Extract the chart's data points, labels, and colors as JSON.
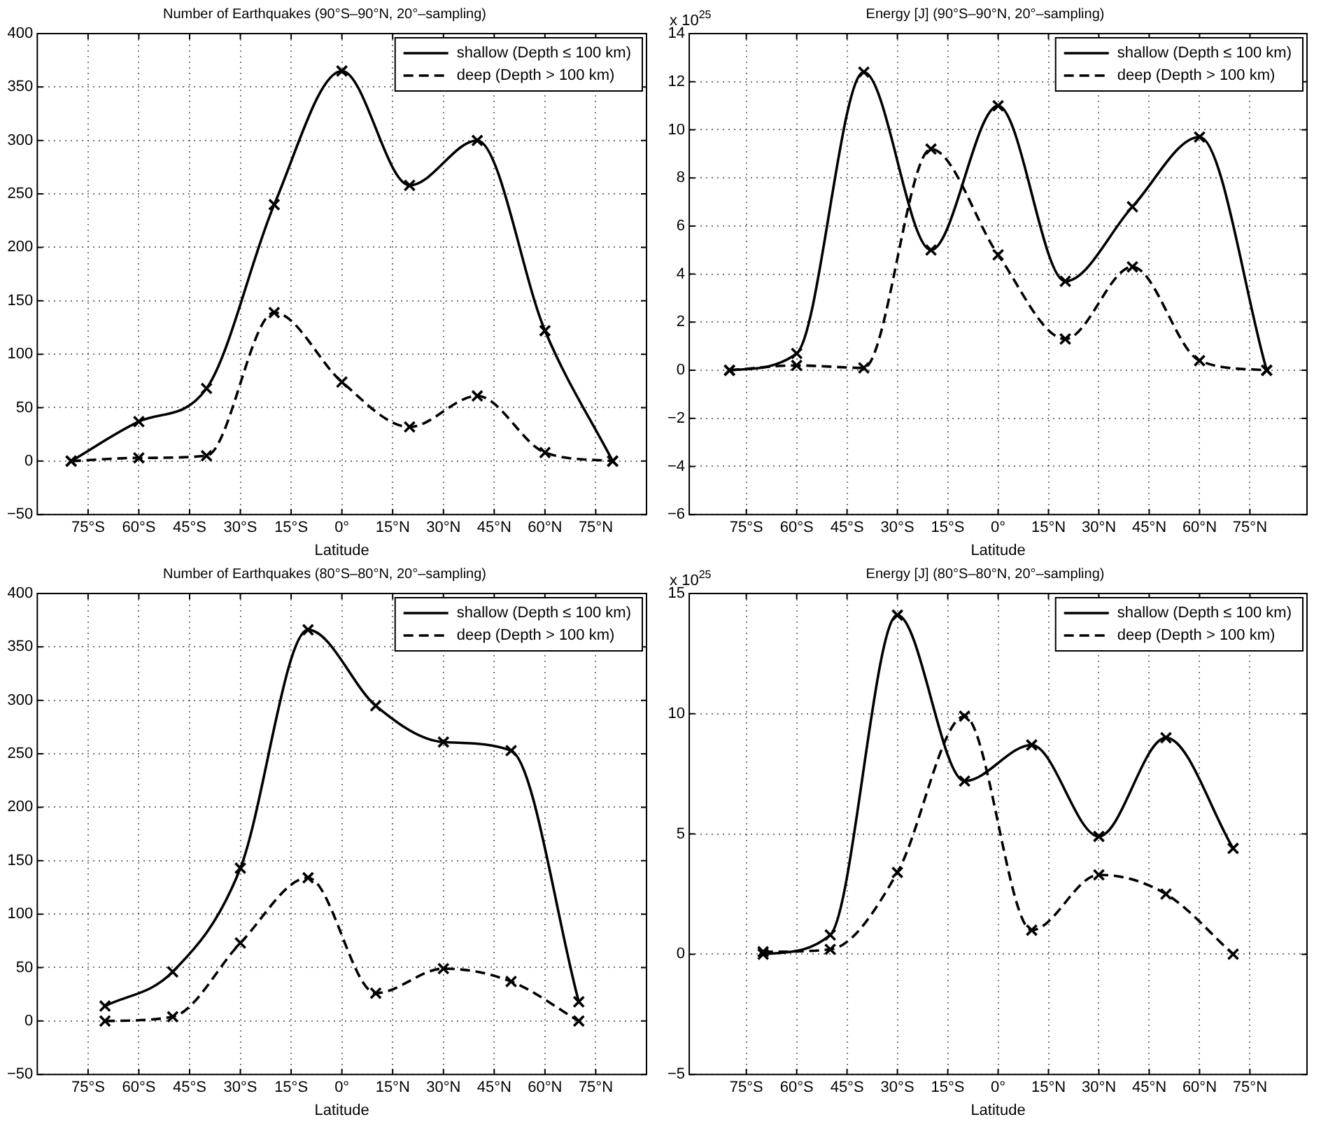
{
  "chart_data": [
    {
      "type": "line",
      "title": "Number of Earthquakes (90°S–90°N, 20°–sampling)",
      "xlabel": "Latitude",
      "x": [
        -80,
        -60,
        -40,
        -20,
        0,
        20,
        40,
        60,
        80
      ],
      "xlim": [
        -90,
        90
      ],
      "xticks": [
        {
          "value": -75,
          "label": "75°S"
        },
        {
          "value": -60,
          "label": "60°S"
        },
        {
          "value": -45,
          "label": "45°S"
        },
        {
          "value": -30,
          "label": "30°S"
        },
        {
          "value": -15,
          "label": "15°S"
        },
        {
          "value": 0,
          "label": "0°"
        },
        {
          "value": 15,
          "label": "15°N"
        },
        {
          "value": 30,
          "label": "30°N"
        },
        {
          "value": 45,
          "label": "45°N"
        },
        {
          "value": 60,
          "label": "60°N"
        },
        {
          "value": 75,
          "label": "75°N"
        }
      ],
      "ylim": [
        -50,
        400
      ],
      "yticks": [
        -50,
        0,
        50,
        100,
        150,
        200,
        250,
        300,
        350,
        400
      ],
      "grid": true,
      "legend": "top right",
      "marker": "cross",
      "series": [
        {
          "name": "shallow (Depth ≤ 100 km)",
          "color": "#000000",
          "line_style": "solid",
          "values": [
            0,
            37,
            68,
            240,
            365,
            258,
            300,
            122,
            0
          ]
        },
        {
          "name": "deep (Depth > 100 km)",
          "color": "#000000",
          "line_style": "dashed",
          "values": [
            0,
            3,
            5,
            139,
            74,
            32,
            61,
            8,
            0
          ]
        }
      ]
    },
    {
      "type": "line",
      "title": "Energy [J] (90°S–90°N, 20°–sampling)",
      "xlabel": "Latitude",
      "x": [
        -80,
        -60,
        -40,
        -20,
        0,
        20,
        40,
        60,
        80
      ],
      "xlim": [
        -92,
        92
      ],
      "xticks": [
        {
          "value": -75,
          "label": "75°S"
        },
        {
          "value": -60,
          "label": "60°S"
        },
        {
          "value": -45,
          "label": "45°S"
        },
        {
          "value": -30,
          "label": "30°S"
        },
        {
          "value": -15,
          "label": "15°S"
        },
        {
          "value": 0,
          "label": "0°"
        },
        {
          "value": 15,
          "label": "15°N"
        },
        {
          "value": 30,
          "label": "30°N"
        },
        {
          "value": 45,
          "label": "45°N"
        },
        {
          "value": 60,
          "label": "60°N"
        },
        {
          "value": 75,
          "label": "75°N"
        }
      ],
      "ylim": [
        -6,
        14
      ],
      "yticks": [
        -6,
        -4,
        -2,
        0,
        2,
        4,
        6,
        8,
        10,
        12,
        14
      ],
      "grid": true,
      "legend": "top right",
      "marker": "cross",
      "annotations": [
        "x 10$^{25}$"
      ],
      "series": [
        {
          "name": "shallow (Depth ≤ 100 km)",
          "color": "#000000",
          "line_style": "solid",
          "values": [
            0,
            0.7,
            12.4,
            5.0,
            11.0,
            3.7,
            6.8,
            9.7,
            0
          ]
        },
        {
          "name": "deep (Depth > 100 km)",
          "color": "#000000",
          "line_style": "dashed",
          "values": [
            0,
            0.2,
            0.1,
            9.2,
            4.8,
            1.3,
            4.3,
            0.4,
            0
          ]
        }
      ]
    },
    {
      "type": "line",
      "title": "Number of Earthquakes (80°S–80°N, 20°–sampling)",
      "xlabel": "Latitude",
      "x": [
        -70,
        -50,
        -30,
        -10,
        10,
        30,
        50,
        70
      ],
      "xlim": [
        -90,
        90
      ],
      "xticks": [
        {
          "value": -75,
          "label": "75°S"
        },
        {
          "value": -60,
          "label": "60°S"
        },
        {
          "value": -45,
          "label": "45°S"
        },
        {
          "value": -30,
          "label": "30°S"
        },
        {
          "value": -15,
          "label": "15°S"
        },
        {
          "value": 0,
          "label": "0°"
        },
        {
          "value": 15,
          "label": "15°N"
        },
        {
          "value": 30,
          "label": "30°N"
        },
        {
          "value": 45,
          "label": "45°N"
        },
        {
          "value": 60,
          "label": "60°N"
        },
        {
          "value": 75,
          "label": "75°N"
        }
      ],
      "ylim": [
        -50,
        400
      ],
      "yticks": [
        -50,
        0,
        50,
        100,
        150,
        200,
        250,
        300,
        350,
        400
      ],
      "grid": true,
      "legend": "top right",
      "marker": "cross",
      "series": [
        {
          "name": "shallow (Depth ≤ 100 km)",
          "color": "#000000",
          "line_style": "solid",
          "values": [
            14,
            46,
            143,
            366,
            295,
            261,
            253,
            18
          ]
        },
        {
          "name": "deep (Depth > 100 km)",
          "color": "#000000",
          "line_style": "dashed",
          "values": [
            0,
            4,
            73,
            134,
            26,
            49,
            37,
            0
          ]
        }
      ]
    },
    {
      "type": "line",
      "title": "Energy [J] (80°S–80°N, 20°–sampling)",
      "xlabel": "Latitude",
      "x": [
        -70,
        -50,
        -30,
        -10,
        10,
        30,
        50,
        70
      ],
      "xlim": [
        -92,
        92
      ],
      "xticks": [
        {
          "value": -75,
          "label": "75°S"
        },
        {
          "value": -60,
          "label": "60°S"
        },
        {
          "value": -45,
          "label": "45°S"
        },
        {
          "value": -30,
          "label": "30°S"
        },
        {
          "value": -15,
          "label": "15°S"
        },
        {
          "value": 0,
          "label": "0°"
        },
        {
          "value": 15,
          "label": "15°N"
        },
        {
          "value": 30,
          "label": "30°N"
        },
        {
          "value": 45,
          "label": "45°N"
        },
        {
          "value": 60,
          "label": "60°N"
        },
        {
          "value": 75,
          "label": "75°N"
        }
      ],
      "ylim": [
        -5,
        15
      ],
      "yticks": [
        -5,
        0,
        5,
        10,
        15
      ],
      "grid": true,
      "legend": "top right",
      "marker": "cross",
      "annotations": [
        "x 10$^{25}$"
      ],
      "series": [
        {
          "name": "shallow (Depth ≤ 100 km)",
          "color": "#000000",
          "line_style": "solid",
          "values": [
            0,
            0.8,
            14.1,
            7.2,
            8.7,
            4.9,
            9.0,
            4.4
          ]
        },
        {
          "name": "deep (Depth > 100 km)",
          "color": "#000000",
          "line_style": "dashed",
          "values": [
            0.1,
            0.2,
            3.4,
            9.9,
            1.0,
            3.3,
            2.5,
            0
          ]
        }
      ]
    }
  ]
}
